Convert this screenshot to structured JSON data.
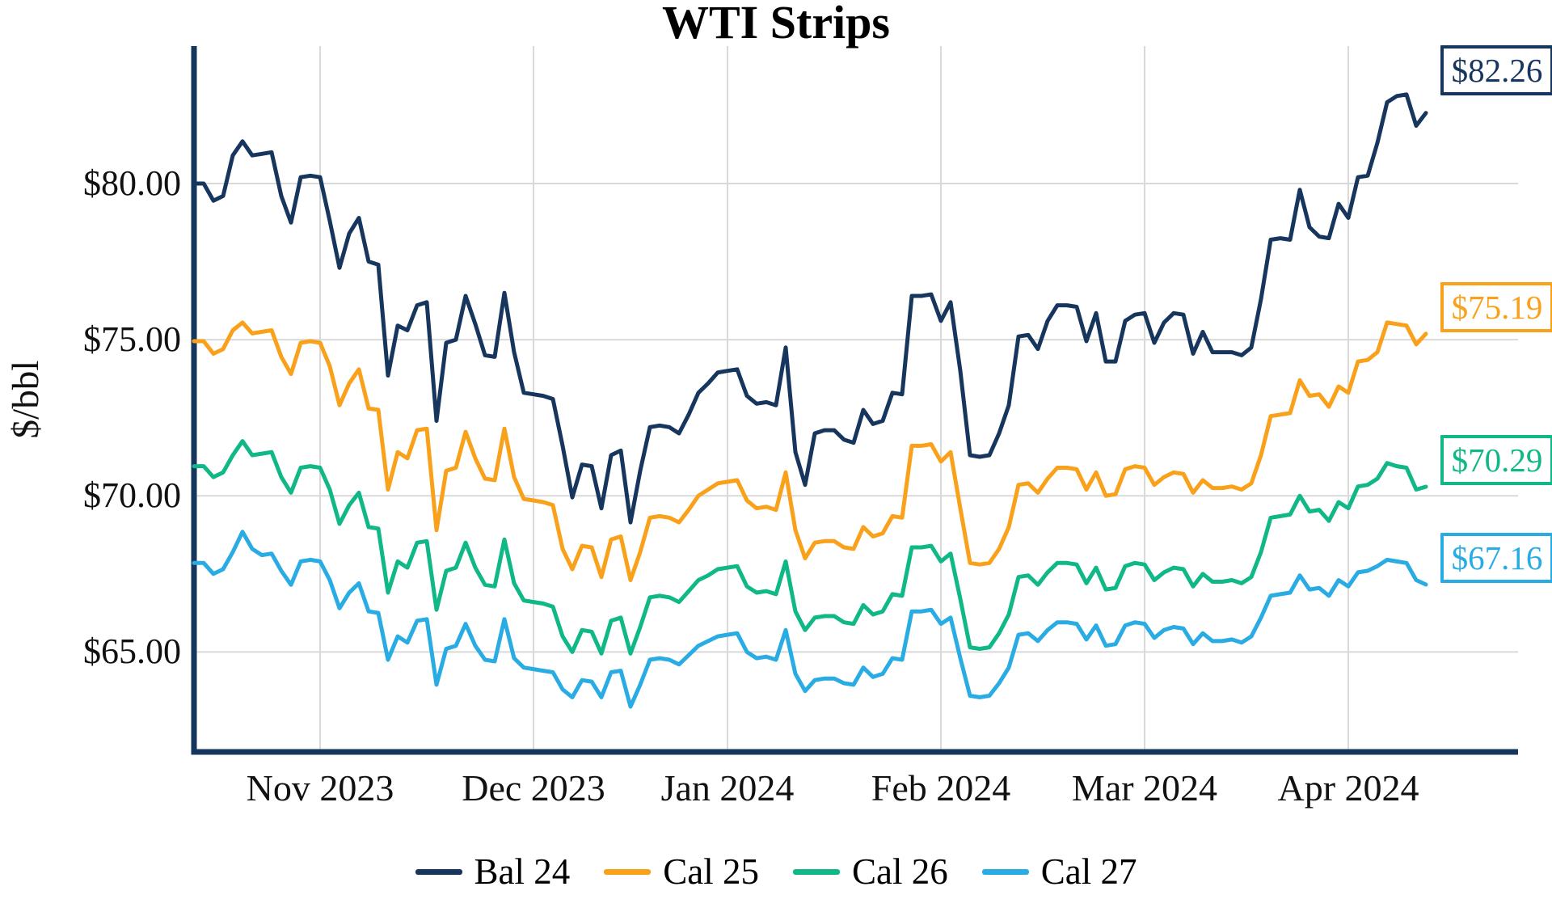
{
  "title": "WTI Strips",
  "y_axis": {
    "title": "$/bbl",
    "ticks": [
      {
        "label": "$80.00",
        "value": 80
      },
      {
        "label": "$75.00",
        "value": 75
      },
      {
        "label": "$70.00",
        "value": 70
      },
      {
        "label": "$65.00",
        "value": 65
      }
    ]
  },
  "x_axis": {
    "ticks": [
      {
        "label": "Nov 2023",
        "index": 13
      },
      {
        "label": "Dec 2023",
        "index": 35
      },
      {
        "label": "Jan 2024",
        "index": 55
      },
      {
        "label": "Feb 2024",
        "index": 77
      },
      {
        "label": "Mar 2024",
        "index": 98
      },
      {
        "label": "Apr 2024",
        "index": 119
      }
    ]
  },
  "legend": {
    "items": [
      {
        "label": "Bal 24"
      },
      {
        "label": "Cal 25"
      },
      {
        "label": "Cal 26"
      },
      {
        "label": "Cal 27"
      }
    ]
  },
  "style": {
    "axis_color": "#17365d",
    "grid_color": "#d9d9d9",
    "background": "#ffffff"
  },
  "chart_data": {
    "type": "line",
    "title": "WTI Strips",
    "xlabel": "",
    "ylabel": "$/bbl",
    "ylim": [
      61.8,
      84.4
    ],
    "grid": true,
    "legend_position": "bottom",
    "x_unit": "daily settlements, mid-Oct 2023 to early-Apr 2024",
    "series": [
      {
        "name": "Bal 24",
        "color": "#17365d",
        "end_label": "$82.26",
        "end_value": 82.26,
        "values": [
          80.0,
          80.0,
          79.45,
          79.6,
          80.9,
          81.35,
          80.9,
          80.95,
          81.0,
          79.6,
          78.75,
          80.2,
          80.25,
          80.2,
          78.8,
          77.3,
          78.4,
          78.9,
          77.5,
          77.4,
          73.85,
          75.45,
          75.3,
          76.1,
          76.2,
          72.4,
          74.9,
          75.0,
          76.4,
          75.5,
          74.5,
          74.45,
          76.5,
          74.6,
          73.3,
          73.25,
          73.2,
          73.1,
          71.6,
          69.95,
          71.0,
          70.95,
          69.6,
          71.3,
          71.45,
          69.15,
          70.8,
          72.2,
          72.25,
          72.2,
          72.0,
          72.6,
          73.3,
          73.6,
          73.95,
          74.0,
          74.05,
          73.2,
          72.95,
          73.0,
          72.9,
          74.75,
          71.4,
          70.35,
          72.0,
          72.1,
          72.1,
          71.8,
          71.7,
          72.75,
          72.3,
          72.4,
          73.3,
          73.25,
          76.4,
          76.4,
          76.45,
          75.6,
          76.2,
          74.0,
          71.3,
          71.25,
          71.3,
          72.0,
          72.9,
          75.1,
          75.15,
          74.7,
          75.6,
          76.1,
          76.1,
          76.05,
          74.95,
          75.85,
          74.3,
          74.3,
          75.6,
          75.8,
          75.85,
          74.9,
          75.55,
          75.85,
          75.8,
          74.55,
          75.25,
          74.6,
          74.6,
          74.6,
          74.5,
          74.75,
          76.3,
          78.2,
          78.25,
          78.2,
          79.8,
          78.6,
          78.3,
          78.25,
          79.35,
          78.9,
          80.2,
          80.25,
          81.3,
          82.6,
          82.8,
          82.85,
          81.85,
          82.26
        ]
      },
      {
        "name": "Cal 25",
        "color": "#f9a11b",
        "end_label": "$75.19",
        "end_value": 75.19,
        "values": [
          74.95,
          74.95,
          74.55,
          74.7,
          75.3,
          75.55,
          75.2,
          75.25,
          75.3,
          74.45,
          73.9,
          74.9,
          74.95,
          74.9,
          74.15,
          72.9,
          73.6,
          74.05,
          72.8,
          72.75,
          70.2,
          71.4,
          71.2,
          72.1,
          72.15,
          68.9,
          70.8,
          70.9,
          72.05,
          71.2,
          70.55,
          70.5,
          72.15,
          70.6,
          69.9,
          69.85,
          69.8,
          69.7,
          68.3,
          67.65,
          68.4,
          68.35,
          67.4,
          68.6,
          68.7,
          67.3,
          68.2,
          69.3,
          69.35,
          69.3,
          69.15,
          69.55,
          70.0,
          70.2,
          70.4,
          70.45,
          70.5,
          69.85,
          69.6,
          69.65,
          69.55,
          70.75,
          68.9,
          68.0,
          68.5,
          68.55,
          68.55,
          68.35,
          68.3,
          69.0,
          68.7,
          68.8,
          69.35,
          69.3,
          71.6,
          71.6,
          71.65,
          71.1,
          71.4,
          69.6,
          67.85,
          67.8,
          67.85,
          68.3,
          69.0,
          70.35,
          70.4,
          70.1,
          70.55,
          70.9,
          70.9,
          70.85,
          70.2,
          70.75,
          70.0,
          70.05,
          70.85,
          70.95,
          70.9,
          70.35,
          70.6,
          70.75,
          70.7,
          70.1,
          70.5,
          70.25,
          70.25,
          70.3,
          70.2,
          70.4,
          71.3,
          72.55,
          72.6,
          72.65,
          73.7,
          73.2,
          73.25,
          72.85,
          73.5,
          73.3,
          74.3,
          74.35,
          74.6,
          75.55,
          75.5,
          75.45,
          74.85,
          75.19
        ]
      },
      {
        "name": "Cal 26",
        "color": "#0fb886",
        "end_label": "$70.29",
        "end_value": 70.29,
        "values": [
          70.95,
          70.95,
          70.6,
          70.75,
          71.3,
          71.75,
          71.3,
          71.35,
          71.4,
          70.6,
          70.1,
          70.9,
          70.95,
          70.9,
          70.2,
          69.1,
          69.7,
          70.1,
          69.0,
          68.95,
          66.9,
          67.9,
          67.7,
          68.5,
          68.55,
          66.35,
          67.6,
          67.7,
          68.5,
          67.7,
          67.15,
          67.1,
          68.6,
          67.2,
          66.65,
          66.6,
          66.55,
          66.45,
          65.5,
          65.0,
          65.7,
          65.65,
          64.95,
          66.0,
          66.1,
          64.95,
          65.8,
          66.75,
          66.8,
          66.75,
          66.6,
          66.95,
          67.3,
          67.45,
          67.65,
          67.7,
          67.75,
          67.1,
          66.9,
          66.95,
          66.85,
          67.9,
          66.3,
          65.7,
          66.1,
          66.15,
          66.15,
          65.95,
          65.9,
          66.5,
          66.2,
          66.3,
          66.85,
          66.8,
          68.35,
          68.35,
          68.4,
          67.9,
          68.15,
          66.7,
          65.15,
          65.1,
          65.15,
          65.6,
          66.2,
          67.4,
          67.45,
          67.15,
          67.55,
          67.85,
          67.85,
          67.8,
          67.2,
          67.7,
          67.0,
          67.05,
          67.75,
          67.85,
          67.8,
          67.3,
          67.55,
          67.7,
          67.65,
          67.1,
          67.5,
          67.25,
          67.25,
          67.3,
          67.2,
          67.4,
          68.2,
          69.3,
          69.35,
          69.4,
          70.0,
          69.5,
          69.55,
          69.2,
          69.8,
          69.6,
          70.3,
          70.35,
          70.55,
          71.05,
          70.95,
          70.9,
          70.2,
          70.29
        ]
      },
      {
        "name": "Cal 27",
        "color": "#29ace3",
        "end_label": "$67.16",
        "end_value": 67.16,
        "values": [
          67.85,
          67.85,
          67.5,
          67.65,
          68.2,
          68.85,
          68.3,
          68.1,
          68.15,
          67.6,
          67.15,
          67.9,
          67.95,
          67.9,
          67.3,
          66.4,
          66.9,
          67.2,
          66.3,
          66.25,
          64.75,
          65.5,
          65.3,
          66.0,
          66.05,
          63.95,
          65.1,
          65.2,
          65.9,
          65.2,
          64.75,
          64.7,
          66.05,
          64.8,
          64.5,
          64.45,
          64.4,
          64.35,
          63.8,
          63.55,
          64.1,
          64.05,
          63.55,
          64.35,
          64.4,
          63.25,
          63.95,
          64.75,
          64.8,
          64.75,
          64.6,
          64.9,
          65.2,
          65.35,
          65.5,
          65.55,
          65.6,
          65.0,
          64.8,
          64.85,
          64.75,
          65.7,
          64.3,
          63.75,
          64.1,
          64.15,
          64.15,
          64.0,
          63.95,
          64.5,
          64.2,
          64.3,
          64.8,
          64.75,
          66.3,
          66.3,
          66.35,
          65.9,
          66.1,
          64.8,
          63.6,
          63.55,
          63.6,
          64.0,
          64.5,
          65.55,
          65.6,
          65.35,
          65.7,
          65.95,
          65.95,
          65.9,
          65.4,
          65.85,
          65.2,
          65.25,
          65.85,
          65.95,
          65.9,
          65.45,
          65.7,
          65.8,
          65.75,
          65.25,
          65.6,
          65.35,
          65.35,
          65.4,
          65.3,
          65.5,
          66.1,
          66.8,
          66.85,
          66.9,
          67.45,
          67.0,
          67.05,
          66.8,
          67.3,
          67.1,
          67.55,
          67.6,
          67.75,
          67.95,
          67.9,
          67.85,
          67.3,
          67.16
        ]
      }
    ]
  }
}
